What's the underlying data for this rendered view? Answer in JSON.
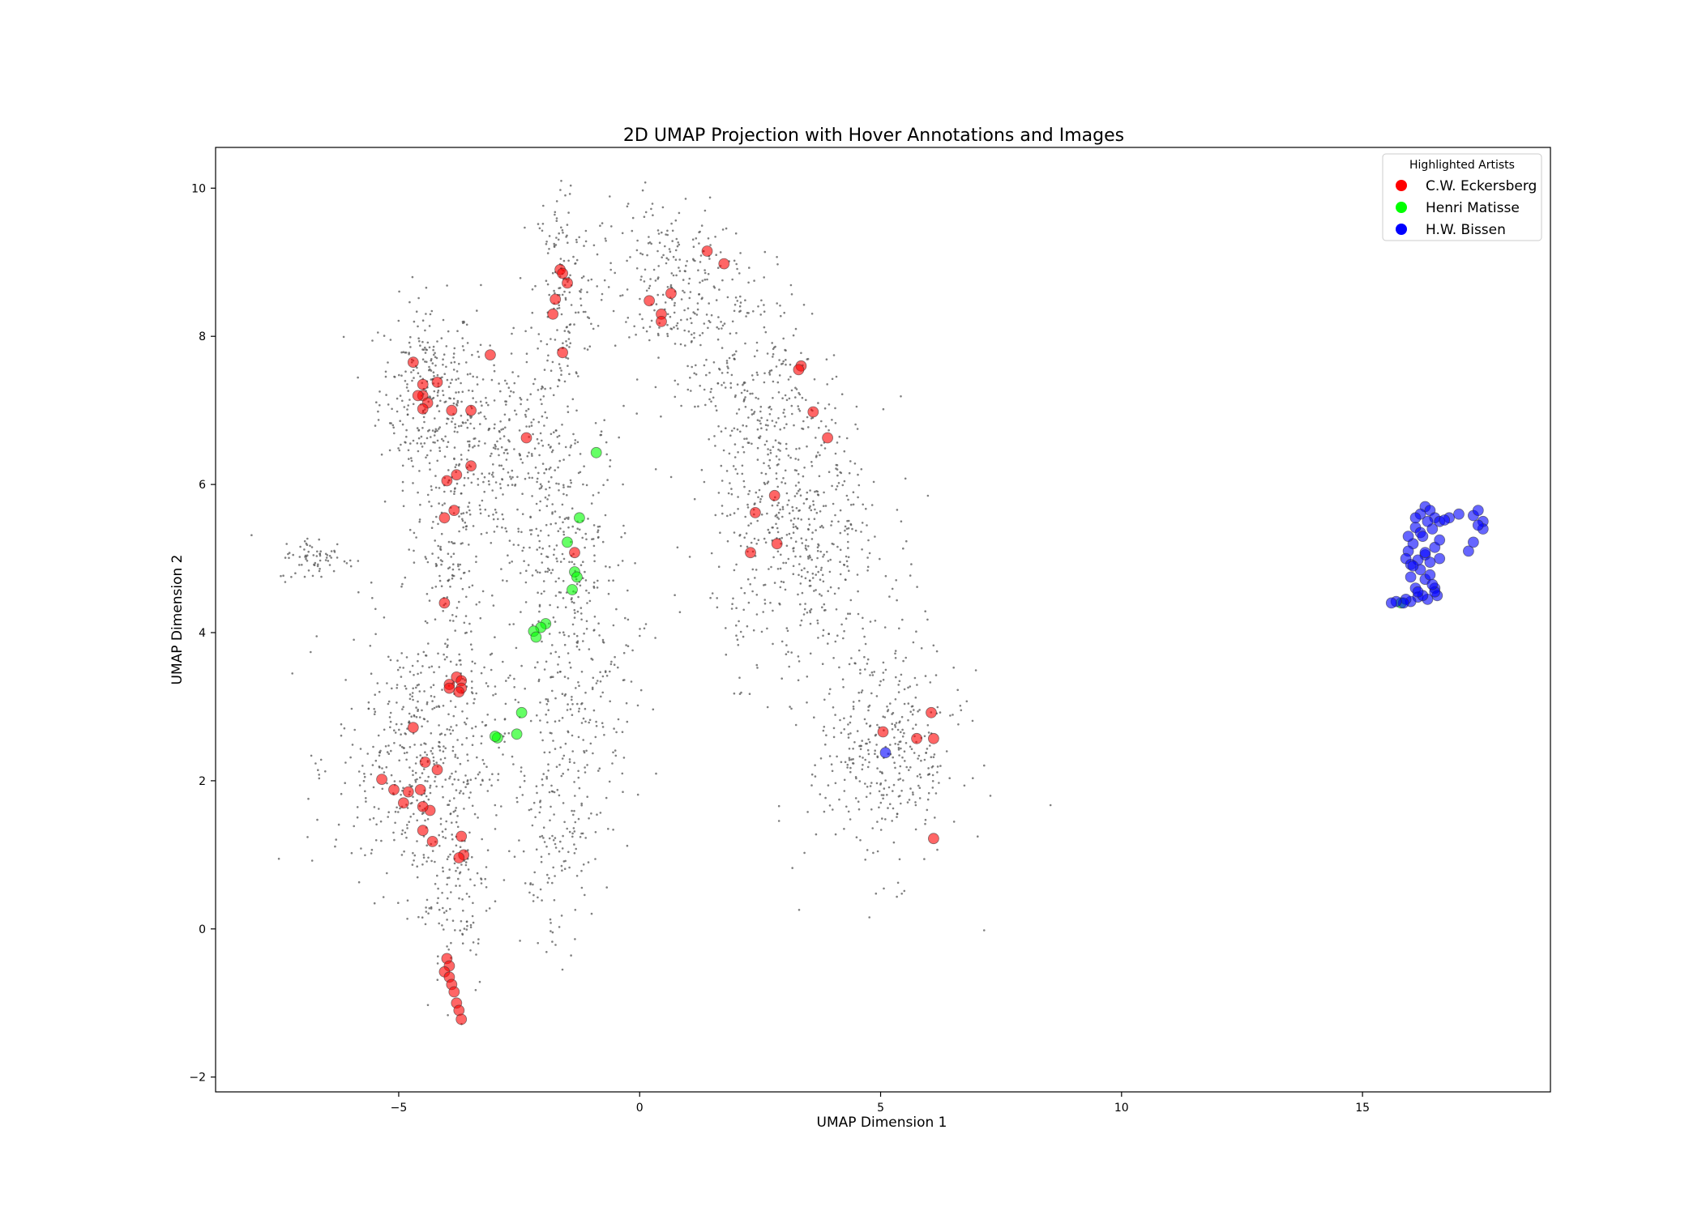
{
  "chart_data": {
    "type": "scatter",
    "title": "2D UMAP Projection with Hover Annotations and Images",
    "xlabel": "UMAP Dimension 1",
    "ylabel": "UMAP Dimension 2",
    "xlim": [
      -8.8,
      18.9
    ],
    "ylim": [
      -2.2,
      10.55
    ],
    "xticks": [
      -5,
      0,
      5,
      10,
      15
    ],
    "xtick_labels": [
      "−5",
      "0",
      "5",
      "10",
      "15"
    ],
    "yticks": [
      -2,
      0,
      2,
      4,
      6,
      8,
      10
    ],
    "ytick_labels": [
      "−2",
      "0",
      "2",
      "4",
      "6",
      "8",
      "10"
    ],
    "grid": false,
    "legend": {
      "title": "Highlighted Artists",
      "placement": "top-right",
      "entries": [
        {
          "label": "C.W. Eckersberg",
          "color": "#ff0000"
        },
        {
          "label": "Henri Matisse",
          "color": "#00ff00"
        },
        {
          "label": "H.W. Bissen",
          "color": "#0000ff"
        }
      ]
    },
    "background_series": {
      "name": "",
      "color": "#555555",
      "note_clusters": [
        {
          "cx": -4.4,
          "cy": 7.3,
          "sx": 0.5,
          "sy": 0.6,
          "n": 260
        },
        {
          "cx": -2.9,
          "cy": 6.4,
          "sx": 0.9,
          "sy": 0.7,
          "n": 320
        },
        {
          "cx": -1.6,
          "cy": 8.6,
          "sx": 0.3,
          "sy": 0.8,
          "n": 160
        },
        {
          "cx": -4.0,
          "cy": 5.0,
          "sx": 0.35,
          "sy": 0.9,
          "n": 140
        },
        {
          "cx": -1.5,
          "cy": 5.0,
          "sx": 0.7,
          "sy": 1.0,
          "n": 260
        },
        {
          "cx": -4.5,
          "cy": 2.3,
          "sx": 0.9,
          "sy": 0.9,
          "n": 520
        },
        {
          "cx": -3.8,
          "cy": 0.5,
          "sx": 0.35,
          "sy": 0.7,
          "n": 110
        },
        {
          "cx": -6.7,
          "cy": 5.0,
          "sx": 0.4,
          "sy": 0.15,
          "n": 70
        },
        {
          "cx": -1.3,
          "cy": 3.0,
          "sx": 0.6,
          "sy": 1.1,
          "n": 220
        },
        {
          "cx": 0.6,
          "cy": 8.7,
          "sx": 0.8,
          "sy": 0.6,
          "n": 260
        },
        {
          "cx": 2.4,
          "cy": 7.4,
          "sx": 0.7,
          "sy": 0.7,
          "n": 240
        },
        {
          "cx": 3.3,
          "cy": 5.3,
          "sx": 0.9,
          "sy": 0.9,
          "n": 520
        },
        {
          "cx": 5.1,
          "cy": 2.4,
          "sx": 0.8,
          "sy": 0.8,
          "n": 380
        },
        {
          "cx": -1.8,
          "cy": 0.9,
          "sx": 0.35,
          "sy": 0.6,
          "n": 90
        }
      ]
    },
    "series": [
      {
        "name": "C.W. Eckersberg",
        "color": "#ff0000",
        "x": [
          -1.65,
          -1.6,
          -1.5,
          -1.75,
          -1.8,
          -1.6,
          -3.1,
          -4.7,
          -4.5,
          -4.5,
          -4.6,
          -4.4,
          -4.5,
          -4.2,
          -3.9,
          -3.5,
          -2.35,
          -3.5,
          -3.8,
          -4.0,
          -4.05,
          -3.85,
          -4.05,
          -3.95,
          1.4,
          1.75,
          0.2,
          0.65,
          0.45,
          0.45,
          3.35,
          3.3,
          3.6,
          3.9,
          2.8,
          2.4,
          2.85,
          2.3,
          -1.35,
          -3.8,
          -3.7,
          -3.7,
          -3.75,
          -3.95,
          -4.7,
          -4.45,
          -5.35,
          -5.1,
          -4.9,
          -4.8,
          -4.55,
          -4.2,
          -4.35,
          -4.5,
          -4.5,
          -4.3,
          -3.7,
          -3.65,
          -3.75,
          -4.0,
          -3.95,
          -4.05,
          -3.95,
          -3.9,
          -3.85,
          -3.8,
          -3.75,
          -3.7,
          5.05,
          6.05,
          5.75,
          6.1,
          6.1
        ],
        "y": [
          8.9,
          8.85,
          8.72,
          8.5,
          8.3,
          7.78,
          7.75,
          7.65,
          7.35,
          7.2,
          7.2,
          7.1,
          7.02,
          7.38,
          7.0,
          7.0,
          6.63,
          6.25,
          6.13,
          6.05,
          5.55,
          5.65,
          4.4,
          3.3,
          9.15,
          8.98,
          8.48,
          8.58,
          8.3,
          8.2,
          7.6,
          7.55,
          6.98,
          6.63,
          5.85,
          5.62,
          5.2,
          5.08,
          5.08,
          3.4,
          3.35,
          3.25,
          3.2,
          3.25,
          2.72,
          2.25,
          2.02,
          1.88,
          1.7,
          1.85,
          1.88,
          2.15,
          1.6,
          1.65,
          1.33,
          1.18,
          1.25,
          1.0,
          0.96,
          -0.4,
          -0.5,
          -0.58,
          -0.65,
          -0.75,
          -0.85,
          -1.0,
          -1.1,
          -1.22,
          2.66,
          2.92,
          2.57,
          2.57,
          1.22
        ]
      },
      {
        "name": "Henri Matisse",
        "color": "#00ff00",
        "x": [
          -0.9,
          -1.25,
          -1.5,
          -1.35,
          -1.3,
          -1.4,
          -1.95,
          -2.05,
          -2.2,
          -2.15,
          -2.45,
          -2.55,
          -2.95,
          -3.0,
          15.8
        ],
        "y": [
          6.43,
          5.55,
          5.22,
          4.82,
          4.75,
          4.58,
          4.12,
          4.07,
          4.02,
          3.94,
          2.92,
          2.63,
          2.58,
          2.6,
          4.4
        ]
      },
      {
        "name": "H.W. Bissen",
        "color": "#0000ff",
        "x": [
          16.3,
          16.4,
          16.2,
          16.5,
          16.6,
          16.8,
          17.0,
          17.3,
          17.4,
          17.5,
          17.5,
          17.4,
          17.3,
          17.2,
          16.1,
          16.2,
          16.05,
          15.95,
          15.9,
          16.3,
          16.5,
          16.6,
          16.6,
          16.4,
          16.2,
          16.0,
          16.1,
          16.3,
          16.4,
          16.5,
          16.55,
          16.35,
          16.15,
          16.0,
          15.9,
          15.85,
          15.7,
          15.6,
          16.25,
          16.45,
          16.35,
          16.7,
          16.1,
          15.95,
          16.0,
          16.15,
          16.3,
          16.5,
          16.45,
          16.25,
          16.15,
          16.05,
          5.1
        ],
        "y": [
          5.7,
          5.65,
          5.6,
          5.55,
          5.5,
          5.55,
          5.6,
          5.58,
          5.65,
          5.5,
          5.4,
          5.45,
          5.22,
          5.1,
          5.42,
          5.35,
          5.2,
          5.1,
          5.0,
          5.05,
          5.15,
          5.25,
          5.0,
          4.95,
          4.85,
          4.75,
          4.6,
          4.72,
          4.78,
          4.6,
          4.5,
          4.45,
          4.48,
          4.42,
          4.45,
          4.4,
          4.42,
          4.4,
          5.3,
          5.4,
          5.5,
          5.52,
          5.55,
          5.3,
          4.92,
          4.98,
          5.08,
          4.55,
          4.65,
          4.5,
          4.55,
          4.9,
          2.38
        ]
      }
    ]
  }
}
